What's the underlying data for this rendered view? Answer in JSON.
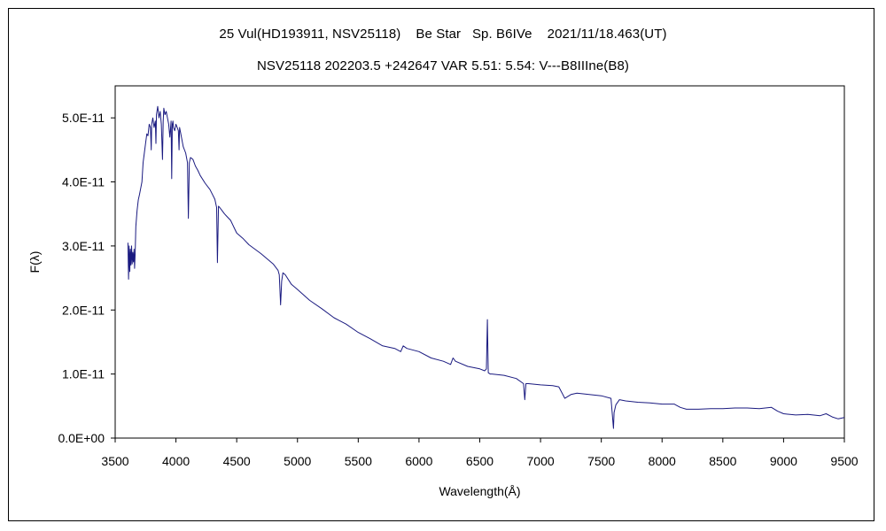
{
  "chart_data": {
    "type": "line",
    "title": "25 Vul(HD193911, NSV25118)    Be Star   Sp. B6IVe    2021/11/18.463(UT)",
    "subtitle": "NSV25118 202203.5 +242647 VAR 5.51: 5.54: V---B8IIIne(B8)",
    "xlabel": "Wavelength(Å)",
    "ylabel": "F(λ)",
    "xlim": [
      3500,
      9500
    ],
    "ylim": [
      0,
      5.5e-11
    ],
    "x_ticks": [
      3500,
      4000,
      4500,
      5000,
      5500,
      6000,
      6500,
      7000,
      7500,
      8000,
      8500,
      9000,
      9500
    ],
    "x_tick_labels": [
      "3500",
      "4000",
      "4500",
      "5000",
      "5500",
      "6000",
      "6500",
      "7000",
      "7500",
      "8000",
      "8500",
      "9000",
      "9500"
    ],
    "y_ticks": [
      0,
      1e-11,
      2e-11,
      3e-11,
      4e-11,
      5e-11
    ],
    "y_tick_labels": [
      "0.0E+00",
      "1.0E-11",
      "2.0E-11",
      "3.0E-11",
      "4.0E-11",
      "5.0E-11"
    ],
    "grid": false,
    "legend": false,
    "series": [
      {
        "name": "spectrum",
        "color": "#1a1a80",
        "x": [
          3605,
          3610,
          3615,
          3620,
          3625,
          3630,
          3635,
          3640,
          3645,
          3650,
          3655,
          3660,
          3665,
          3670,
          3680,
          3690,
          3700,
          3710,
          3720,
          3730,
          3740,
          3750,
          3760,
          3770,
          3780,
          3790,
          3797,
          3800,
          3810,
          3820,
          3830,
          3835,
          3840,
          3850,
          3860,
          3870,
          3880,
          3889,
          3895,
          3900,
          3910,
          3920,
          3930,
          3940,
          3950,
          3960,
          3965,
          3970,
          3975,
          3980,
          3990,
          4000,
          4010,
          4020,
          4026,
          4030,
          4040,
          4060,
          4080,
          4095,
          4102,
          4110,
          4120,
          4140,
          4160,
          4180,
          4200,
          4240,
          4280,
          4320,
          4335,
          4341,
          4350,
          4360,
          4380,
          4400,
          4450,
          4480,
          4500,
          4550,
          4600,
          4700,
          4800,
          4840,
          4850,
          4861,
          4870,
          4880,
          4900,
          4950,
          5000,
          5100,
          5200,
          5300,
          5400,
          5500,
          5600,
          5700,
          5800,
          5850,
          5870,
          5900,
          6000,
          6100,
          6200,
          6260,
          6280,
          6300,
          6400,
          6500,
          6540,
          6555,
          6563,
          6570,
          6585,
          6600,
          6700,
          6800,
          6860,
          6870,
          6880,
          6900,
          7000,
          7100,
          7150,
          7200,
          7250,
          7300,
          7400,
          7500,
          7580,
          7600,
          7605,
          7620,
          7650,
          7700,
          7800,
          7900,
          8000,
          8100,
          8150,
          8200,
          8300,
          8400,
          8500,
          8600,
          8700,
          8800,
          8900,
          8950,
          9000,
          9100,
          9200,
          9300,
          9350,
          9400,
          9450,
          9500
        ],
        "y": [
          3.05e-11,
          2.48e-11,
          3e-11,
          2.6e-11,
          2.95e-11,
          2.7e-11,
          3e-11,
          2.72e-11,
          2.9e-11,
          2.75e-11,
          2.95e-11,
          2.65e-11,
          2.9e-11,
          3.3e-11,
          3.55e-11,
          3.72e-11,
          3.8e-11,
          3.9e-11,
          4e-11,
          4.3e-11,
          4.45e-11,
          4.6e-11,
          4.75e-11,
          4.72e-11,
          4.9e-11,
          4.85e-11,
          4.5e-11,
          4.9e-11,
          5e-11,
          4.85e-11,
          4.95e-11,
          4.6e-11,
          5.05e-11,
          5.18e-11,
          5e-11,
          5.1e-11,
          4.9e-11,
          4.35e-11,
          4.95e-11,
          5.15e-11,
          5.05e-11,
          5.1e-11,
          5e-11,
          4.9e-11,
          4.7e-11,
          4.95e-11,
          4.05e-11,
          4.9e-11,
          4.95e-11,
          4.85e-11,
          4.8e-11,
          4.9e-11,
          4.85e-11,
          4.8e-11,
          4.5e-11,
          4.85e-11,
          4.75e-11,
          4.55e-11,
          4.45e-11,
          4.3e-11,
          3.43e-11,
          4.3e-11,
          4.38e-11,
          4.35e-11,
          4.25e-11,
          4.18e-11,
          4.1e-11,
          3.98e-11,
          3.88e-11,
          3.73e-11,
          3.6e-11,
          2.74e-11,
          3.62e-11,
          3.6e-11,
          3.55e-11,
          3.5e-11,
          3.4e-11,
          3.28e-11,
          3.2e-11,
          3.12e-11,
          3.02e-11,
          2.88e-11,
          2.72e-11,
          2.62e-11,
          2.55e-11,
          2.08e-11,
          2.45e-11,
          2.58e-11,
          2.55e-11,
          2.4e-11,
          2.32e-11,
          2.15e-11,
          2.02e-11,
          1.88e-11,
          1.78e-11,
          1.65e-11,
          1.55e-11,
          1.44e-11,
          1.4e-11,
          1.35e-11,
          1.44e-11,
          1.4e-11,
          1.35e-11,
          1.25e-11,
          1.2e-11,
          1.15e-11,
          1.25e-11,
          1.2e-11,
          1.12e-11,
          1.08e-11,
          1.05e-11,
          1.08e-11,
          1.85e-11,
          1.02e-11,
          1e-11,
          1e-11,
          9.8e-12,
          9.3e-12,
          8.5e-12,
          6e-12,
          8.5e-12,
          8.5e-12,
          8.3e-12,
          8.2e-12,
          8e-12,
          6.2e-12,
          6.8e-12,
          7e-12,
          6.8e-12,
          6.6e-12,
          6.2e-12,
          1.5e-12,
          4e-12,
          5.2e-12,
          6e-12,
          5.8e-12,
          5.6e-12,
          5.5e-12,
          5.3e-12,
          5.3e-12,
          4.8e-12,
          4.5e-12,
          4.5e-12,
          4.6e-12,
          4.6e-12,
          4.7e-12,
          4.7e-12,
          4.6e-12,
          4.8e-12,
          4.2e-12,
          3.8e-12,
          3.6e-12,
          3.7e-12,
          3.5e-12,
          3.8e-12,
          3.3e-12,
          3e-12,
          3.2e-12
        ]
      }
    ]
  }
}
